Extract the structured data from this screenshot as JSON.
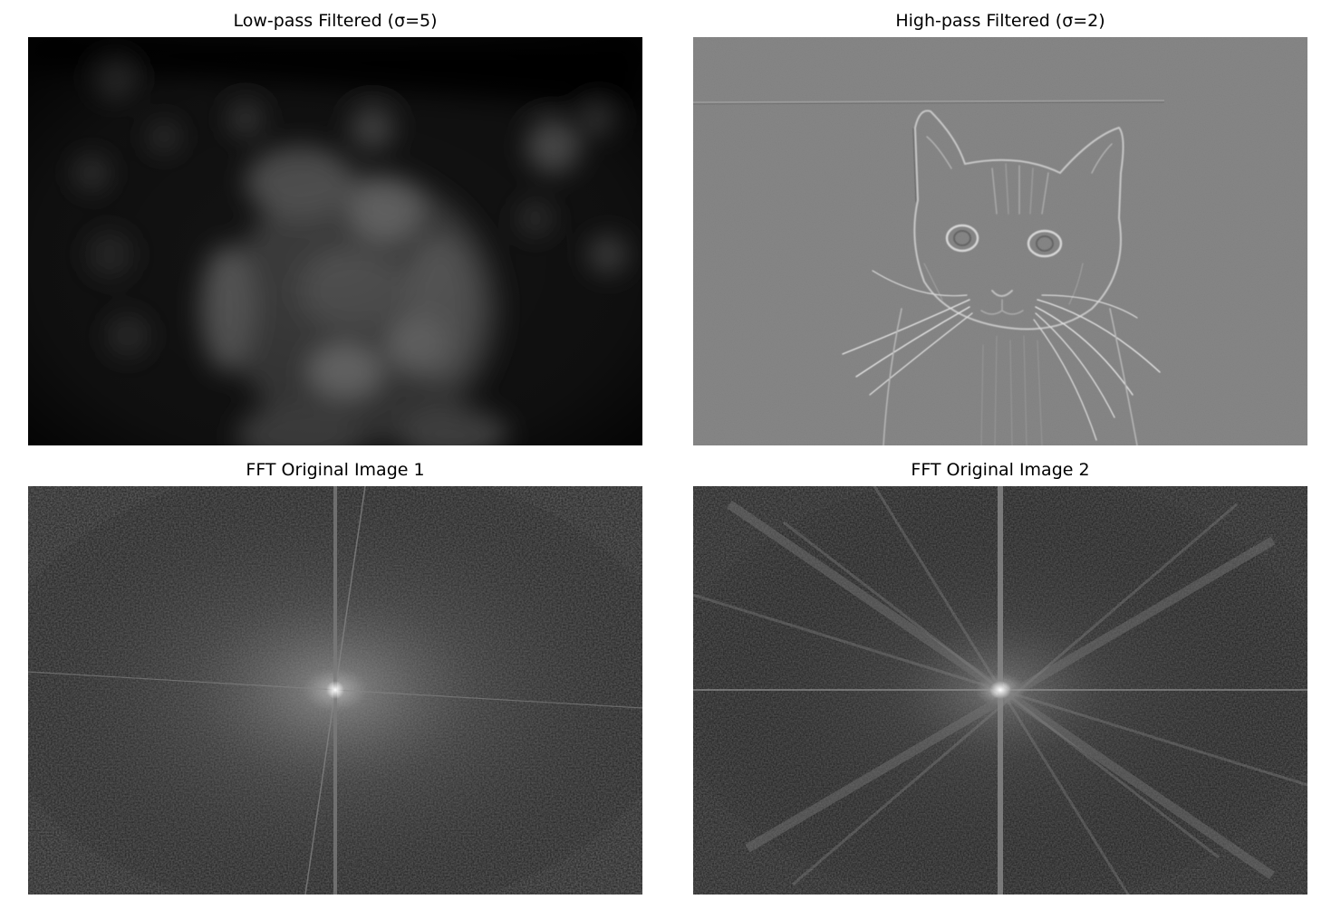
{
  "figure": {
    "panels": [
      {
        "title": "Low-pass Filtered (σ=5)",
        "content": "blurred-cat-image"
      },
      {
        "title": "High-pass Filtered (σ=2)",
        "content": "edge-detail-cat-image"
      },
      {
        "title": "FFT Original Image 1",
        "content": "fft-magnitude-spectrum-1"
      },
      {
        "title": "FFT Original Image 2",
        "content": "fft-magnitude-spectrum-2"
      }
    ]
  }
}
